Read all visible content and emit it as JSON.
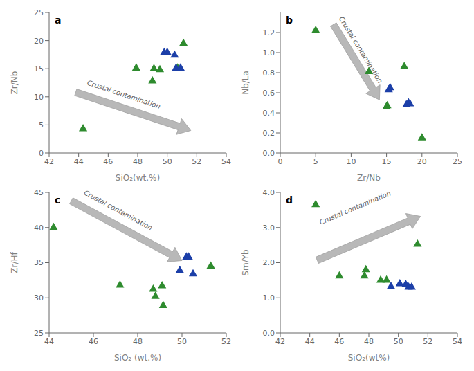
{
  "chart_data": [
    {
      "type": "scatter",
      "title": "a",
      "x_label": "SiO₂(wt.%)",
      "y_label": "Zr/Nb",
      "xlim": [
        42,
        54
      ],
      "ylim": [
        0,
        25
      ],
      "xticks": [
        42,
        44,
        46,
        48,
        50,
        52,
        54
      ],
      "yticks": [
        0,
        5,
        10,
        15,
        20,
        25
      ],
      "grid": false,
      "series": [
        {
          "color": "#2e8b2e",
          "marker": "triangle",
          "x": [
            44.3,
            47.9,
            49.0,
            49.1,
            49.5,
            50.7,
            51.1
          ],
          "y": [
            4.3,
            15.1,
            12.8,
            15.0,
            14.8,
            15.1,
            19.5
          ]
        },
        {
          "color": "#1c3fa8",
          "marker": "triangle",
          "x": [
            49.8,
            50.0,
            50.5,
            50.6,
            50.9
          ],
          "y": [
            17.9,
            17.9,
            17.4,
            15.1,
            15.1
          ]
        }
      ],
      "annotations": [
        {
          "text": "Crustal contamination",
          "x": 44.5,
          "y": 11.8,
          "color": "#606060",
          "arrow_from": [
            43.8,
            10.8
          ],
          "arrow_to": [
            51.6,
            4.0
          ],
          "arrow_color": "#b8b8b8",
          "arrow_edge_color": "#999999"
        }
      ]
    },
    {
      "type": "scatter",
      "title": "b",
      "x_label": "Zr/Nb",
      "y_label": "Nb/La",
      "xlim": [
        0,
        25
      ],
      "ylim": [
        0,
        1.4
      ],
      "xticks": [
        0,
        5,
        10,
        15,
        20,
        25
      ],
      "yticks": [
        {
          "value": 0,
          "label": "0.0"
        },
        0.2,
        0.4,
        0.6,
        0.8,
        {
          "value": 1.0,
          "label": "1.0"
        },
        1.2
      ],
      "grid": false,
      "series": [
        {
          "color": "#2e8b2e",
          "marker": "triangle",
          "x": [
            5.0,
            12.5,
            15.0,
            15.1,
            17.5,
            20.0
          ],
          "y": [
            1.22,
            0.81,
            0.46,
            0.47,
            0.86,
            0.15
          ]
        },
        {
          "color": "#1c3fa8",
          "marker": "triangle",
          "x": [
            15.3,
            15.5,
            17.8,
            18.1,
            18.3
          ],
          "y": [
            0.63,
            0.65,
            0.48,
            0.5,
            0.49
          ]
        }
      ],
      "annotations": [
        {
          "text": "Crustal contamination",
          "x": 8.0,
          "y": 1.33,
          "color": "#606060",
          "arrow_from": [
            7.5,
            1.28
          ],
          "arrow_to": [
            14.0,
            0.53
          ],
          "arrow_color": "#b8b8b8",
          "arrow_edge_color": "#999999"
        }
      ]
    },
    {
      "type": "scatter",
      "title": "c",
      "x_label": "SiO₂ (wt.%)",
      "y_label": "Zr/Hf",
      "xlim": [
        44,
        52
      ],
      "ylim": [
        25,
        45
      ],
      "xticks": [
        44,
        46,
        48,
        50,
        52
      ],
      "yticks": [
        25,
        30,
        35,
        40,
        45
      ],
      "grid": false,
      "series": [
        {
          "color": "#2e8b2e",
          "marker": "triangle",
          "x": [
            44.2,
            47.2,
            48.7,
            48.8,
            49.1,
            49.15,
            51.3
          ],
          "y": [
            40.0,
            31.8,
            31.2,
            30.2,
            31.7,
            28.9,
            34.5
          ]
        },
        {
          "color": "#1c3fa8",
          "marker": "triangle",
          "x": [
            49.9,
            50.2,
            50.3,
            50.5
          ],
          "y": [
            33.9,
            35.8,
            35.8,
            33.4
          ]
        }
      ],
      "annotations": [
        {
          "text": "Crustal contamination",
          "x": 45.5,
          "y": 44.5,
          "color": "#606060",
          "arrow_from": [
            45.0,
            43.8
          ],
          "arrow_to": [
            50.0,
            35.3
          ],
          "arrow_color": "#b8b8b8",
          "arrow_edge_color": "#999999"
        }
      ]
    },
    {
      "type": "scatter",
      "title": "d",
      "x_label": "SiO₂(wt%)",
      "y_label": "Sm/Yb",
      "xlim": [
        42,
        54
      ],
      "ylim": [
        0,
        4.0
      ],
      "xticks": [
        42,
        44,
        46,
        48,
        50,
        52,
        54
      ],
      "yticks": [
        {
          "value": 0.0,
          "label": "0.0"
        },
        {
          "value": 1.0,
          "label": "1.0"
        },
        {
          "value": 2.0,
          "label": "2.0"
        },
        {
          "value": 3.0,
          "label": "3.0"
        },
        {
          "value": 4.0,
          "label": "4.0"
        }
      ],
      "grid": false,
      "series": [
        {
          "color": "#2e8b2e",
          "marker": "triangle",
          "x": [
            44.4,
            46.0,
            47.7,
            47.8,
            48.8,
            49.2,
            51.3
          ],
          "y": [
            3.65,
            1.62,
            1.62,
            1.8,
            1.5,
            1.5,
            2.52
          ]
        },
        {
          "color": "#1c3fa8",
          "marker": "triangle",
          "x": [
            49.5,
            50.1,
            50.5,
            50.7,
            50.9
          ],
          "y": [
            1.32,
            1.4,
            1.38,
            1.3,
            1.3
          ]
        }
      ],
      "annotations": [
        {
          "text": "Crustal contamination",
          "x": 44.8,
          "y": 3.02,
          "color": "#606060",
          "arrow_from": [
            44.5,
            2.07
          ],
          "arrow_to": [
            51.5,
            3.32
          ],
          "arrow_color": "#b8b8b8",
          "arrow_edge_color": "#999999"
        }
      ]
    }
  ]
}
